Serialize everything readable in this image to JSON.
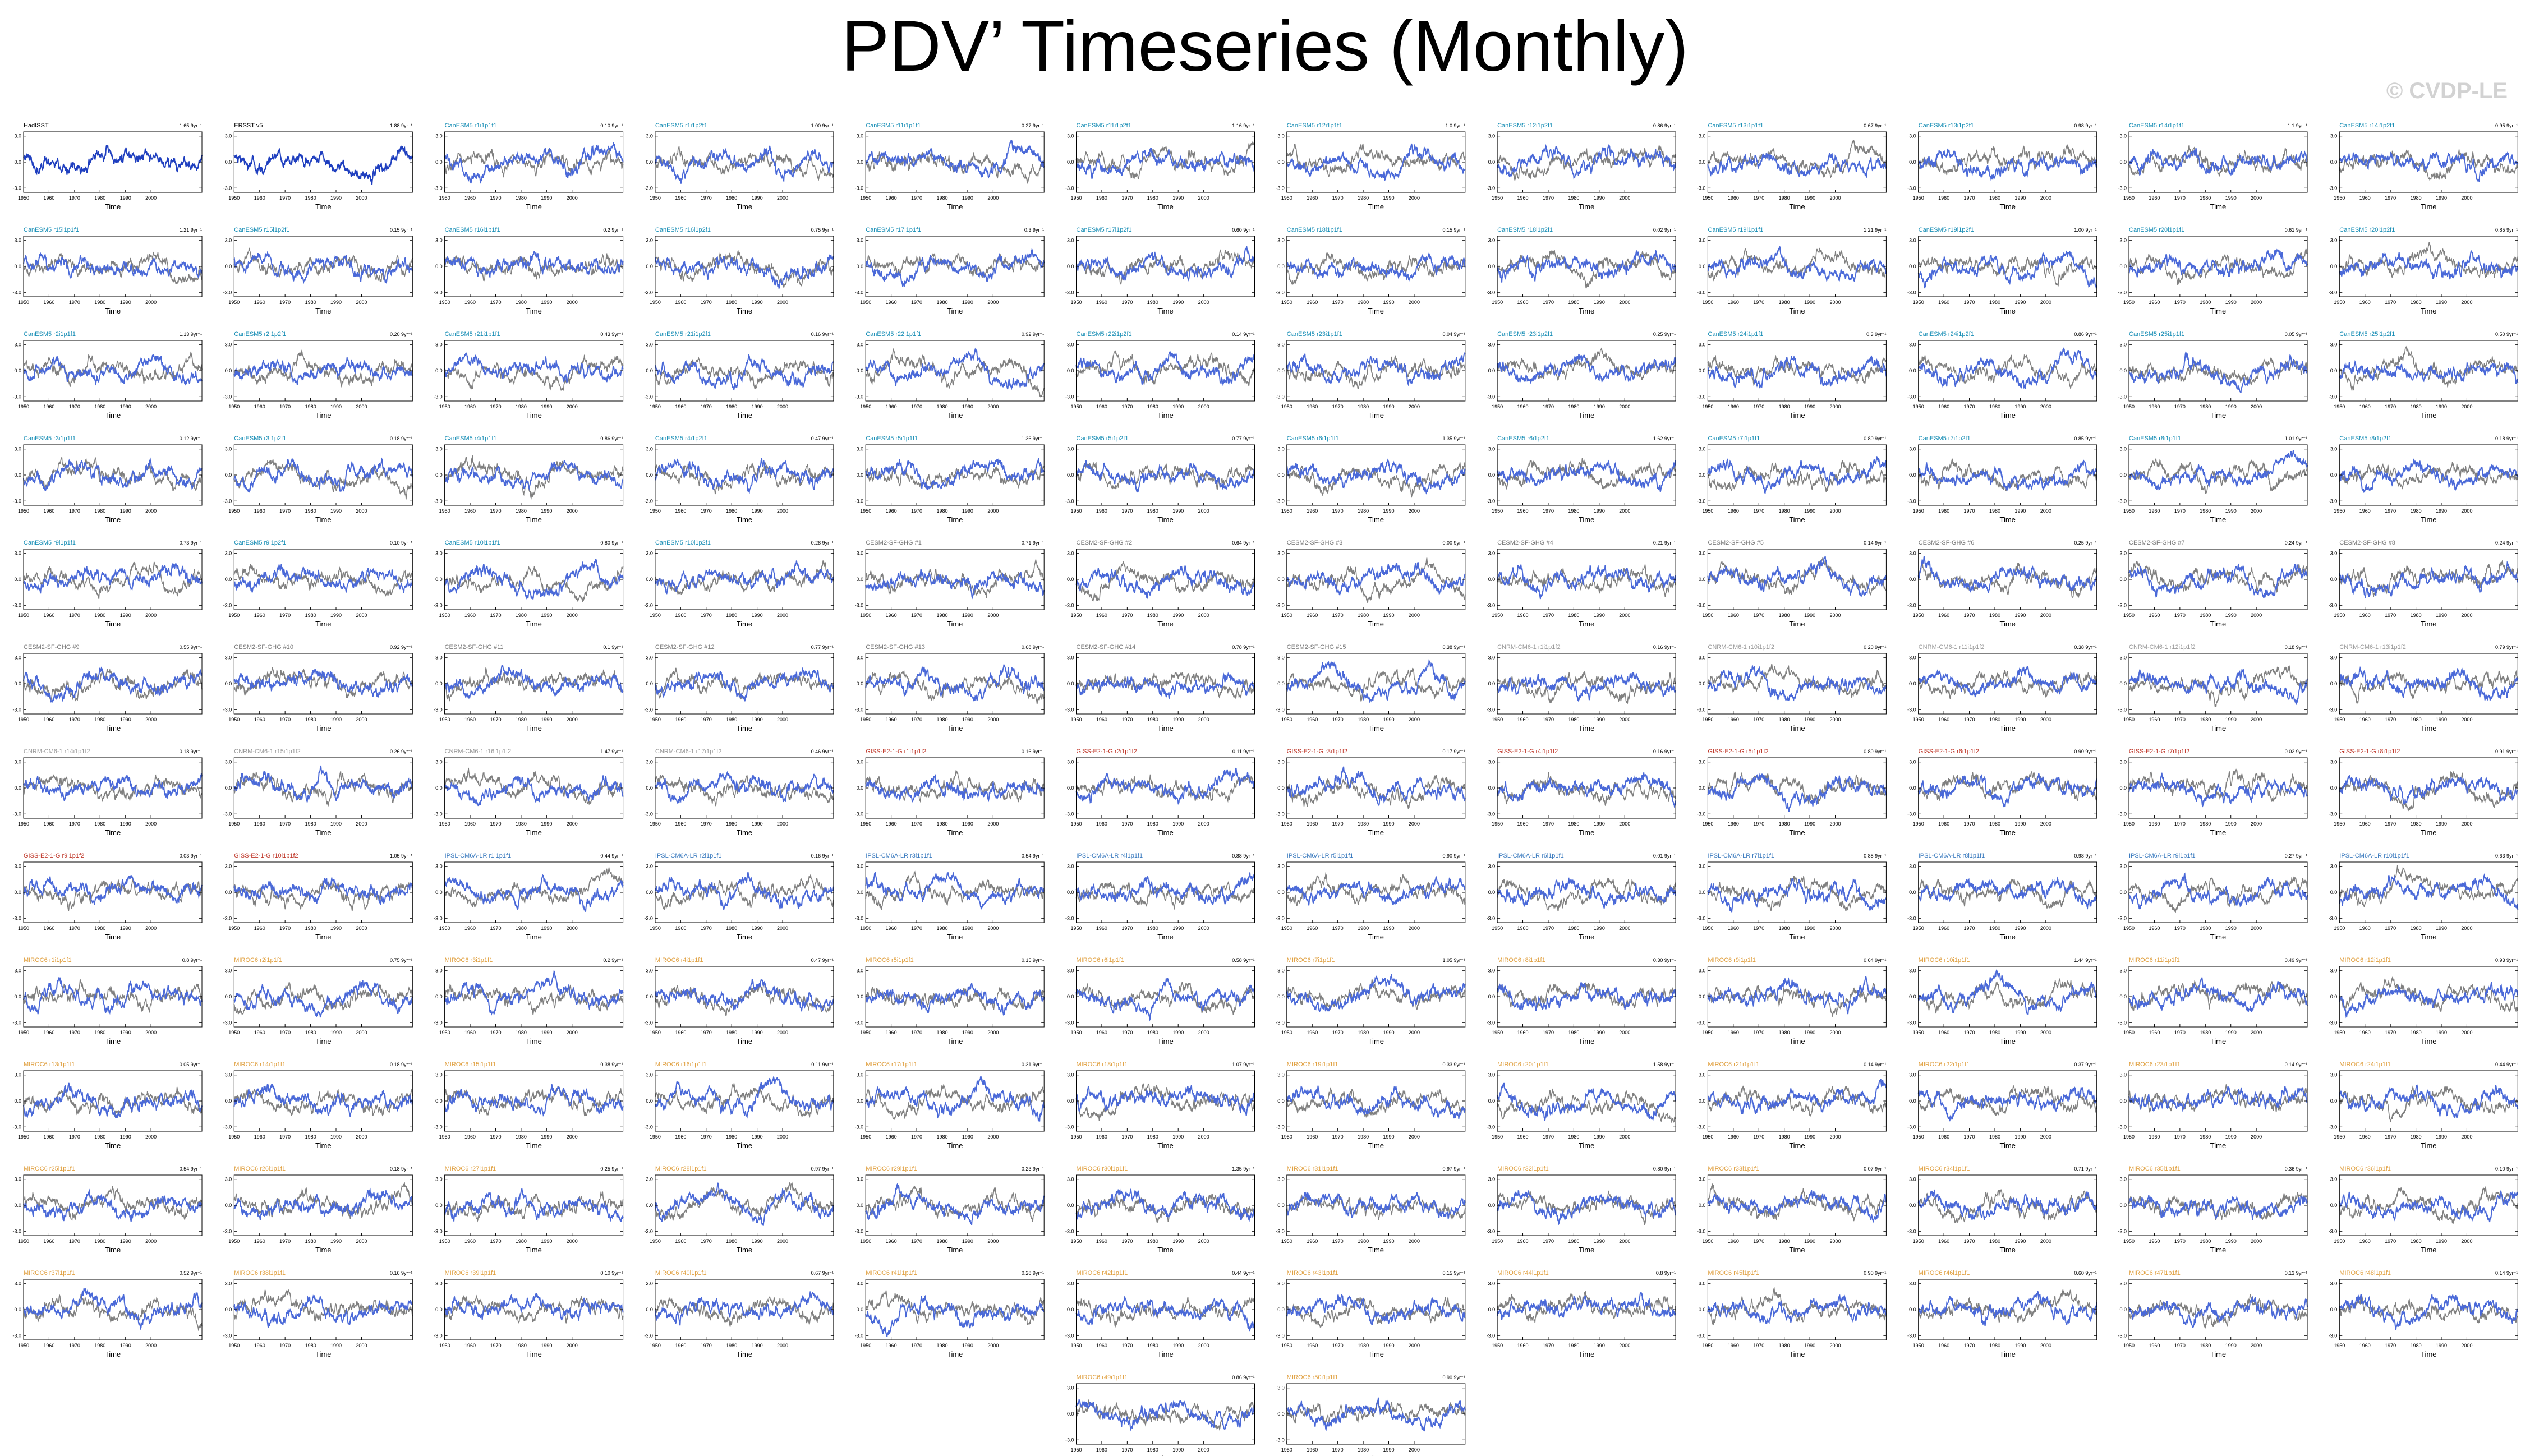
{
  "page": {
    "title": "PDV’ Timeseries (Monthly)",
    "watermark": "© CVDP-LE"
  },
  "colors": {
    "observations_line": "#1f3fbf",
    "model_line": "#4a69d8",
    "reference_line": "#808080",
    "cesm1_title": "#1a8fb6",
    "cesm2_title": "#7a7a7a",
    "cnrm_title": "#9a9a9a",
    "giss_title": "#c0392b",
    "ipsl_title": "#3b7bbf",
    "miroc_title": "#e0a040",
    "obs_title": "#000000"
  },
  "chart_data": {
    "type": "line",
    "panel_layout": "small multiples, 12 columns",
    "shared_axes": {
      "xlabel": "Time",
      "xlim": [
        1950,
        2020
      ],
      "xticks": [
        "1950",
        "1960",
        "1970",
        "1980",
        "1990",
        "2000"
      ],
      "ylim": [
        -3.5,
        3.5
      ],
      "yticks": [
        "3.0",
        "0.0",
        "-3.0"
      ],
      "grid": false
    },
    "panels": [
      {
        "title": "HadISST",
        "stat": "1.65 9yr⁻¹",
        "family": "obs",
        "seed": 1
      },
      {
        "title": "ERSST v5",
        "stat": "1.88 9yr⁻¹",
        "family": "obs",
        "seed": 2
      },
      {
        "title": "CanESM5 r1i1p1f1",
        "stat": "0.10 9yr⁻¹",
        "family": "cesm1",
        "seed": 3
      },
      {
        "title": "CanESM5 r1i1p2f1",
        "stat": "1.00 9yr⁻¹",
        "family": "cesm1",
        "seed": 4
      },
      {
        "title": "CanESM5 r11i1p1f1",
        "stat": "0.27 9yr⁻¹",
        "family": "cesm1",
        "seed": 5
      },
      {
        "title": "CanESM5 r11i1p2f1",
        "stat": "1.16 9yr⁻¹",
        "family": "cesm1",
        "seed": 6
      },
      {
        "title": "CanESM5 r12i1p1f1",
        "stat": "1.0 9yr⁻¹",
        "family": "cesm1",
        "seed": 7
      },
      {
        "title": "CanESM5 r12i1p2f1",
        "stat": "0.86 9yr⁻¹",
        "family": "cesm1",
        "seed": 8
      },
      {
        "title": "CanESM5 r13i1p1f1",
        "stat": "0.67 9yr⁻¹",
        "family": "cesm1",
        "seed": 9
      },
      {
        "title": "CanESM5 r13i1p2f1",
        "stat": "0.98 9yr⁻¹",
        "family": "cesm1",
        "seed": 10
      },
      {
        "title": "CanESM5 r14i1p1f1",
        "stat": "1.1 9yr⁻¹",
        "family": "cesm1",
        "seed": 11
      },
      {
        "title": "CanESM5 r14i1p2f1",
        "stat": "0.95 9yr⁻¹",
        "family": "cesm1",
        "seed": 12
      },
      {
        "title": "CanESM5 r15i1p1f1",
        "stat": "1.21 9yr⁻¹",
        "family": "cesm1",
        "seed": 13
      },
      {
        "title": "CanESM5 r15i1p2f1",
        "stat": "0.15 9yr⁻¹",
        "family": "cesm1",
        "seed": 14
      },
      {
        "title": "CanESM5 r16i1p1f1",
        "stat": "0.2 9yr⁻¹",
        "family": "cesm1",
        "seed": 15
      },
      {
        "title": "CanESM5 r16i1p2f1",
        "stat": "0.75 9yr⁻¹",
        "family": "cesm1",
        "seed": 16
      },
      {
        "title": "CanESM5 r17i1p1f1",
        "stat": "0.3 9yr⁻¹",
        "family": "cesm1",
        "seed": 17
      },
      {
        "title": "CanESM5 r17i1p2f1",
        "stat": "0.60 9yr⁻¹",
        "family": "cesm1",
        "seed": 18
      },
      {
        "title": "CanESM5 r18i1p1f1",
        "stat": "0.15 9yr⁻¹",
        "family": "cesm1",
        "seed": 19
      },
      {
        "title": "CanESM5 r18i1p2f1",
        "stat": "0.02 9yr⁻¹",
        "family": "cesm1",
        "seed": 20
      },
      {
        "title": "CanESM5 r19i1p1f1",
        "stat": "1.21 9yr⁻¹",
        "family": "cesm1",
        "seed": 21
      },
      {
        "title": "CanESM5 r19i1p2f1",
        "stat": "1.00 9yr⁻¹",
        "family": "cesm1",
        "seed": 22
      },
      {
        "title": "CanESM5 r20i1p1f1",
        "stat": "0.61 9yr⁻¹",
        "family": "cesm1",
        "seed": 23
      },
      {
        "title": "CanESM5 r20i1p2f1",
        "stat": "0.85 9yr⁻¹",
        "family": "cesm1",
        "seed": 24
      },
      {
        "title": "CanESM5 r2i1p1f1",
        "stat": "1.13 9yr⁻¹",
        "family": "cesm1",
        "seed": 25
      },
      {
        "title": "CanESM5 r2i1p2f1",
        "stat": "0.20 9yr⁻¹",
        "family": "cesm1",
        "seed": 26
      },
      {
        "title": "CanESM5 r21i1p1f1",
        "stat": "0.43 9yr⁻¹",
        "family": "cesm1",
        "seed": 27
      },
      {
        "title": "CanESM5 r21i1p2f1",
        "stat": "0.16 9yr⁻¹",
        "family": "cesm1",
        "seed": 28
      },
      {
        "title": "CanESM5 r22i1p1f1",
        "stat": "0.92 9yr⁻¹",
        "family": "cesm1",
        "seed": 29
      },
      {
        "title": "CanESM5 r22i1p2f1",
        "stat": "0.14 9yr⁻¹",
        "family": "cesm1",
        "seed": 30
      },
      {
        "title": "CanESM5 r23i1p1f1",
        "stat": "0.04 9yr⁻¹",
        "family": "cesm1",
        "seed": 31
      },
      {
        "title": "CanESM5 r23i1p2f1",
        "stat": "0.25 9yr⁻¹",
        "family": "cesm1",
        "seed": 32
      },
      {
        "title": "CanESM5 r24i1p1f1",
        "stat": "0.3 9yr⁻¹",
        "family": "cesm1",
        "seed": 33
      },
      {
        "title": "CanESM5 r24i1p2f1",
        "stat": "0.86 9yr⁻¹",
        "family": "cesm1",
        "seed": 34
      },
      {
        "title": "CanESM5 r25i1p1f1",
        "stat": "0.05 9yr⁻¹",
        "family": "cesm1",
        "seed": 35
      },
      {
        "title": "CanESM5 r25i1p2f1",
        "stat": "0.50 9yr⁻¹",
        "family": "cesm1",
        "seed": 36
      },
      {
        "title": "CanESM5 r3i1p1f1",
        "stat": "0.12 9yr⁻¹",
        "family": "cesm1",
        "seed": 37
      },
      {
        "title": "CanESM5 r3i1p2f1",
        "stat": "0.18 9yr⁻¹",
        "family": "cesm1",
        "seed": 38
      },
      {
        "title": "CanESM5 r4i1p1f1",
        "stat": "0.86 9yr⁻¹",
        "family": "cesm1",
        "seed": 39
      },
      {
        "title": "CanESM5 r4i1p2f1",
        "stat": "0.47 9yr⁻¹",
        "family": "cesm1",
        "seed": 40
      },
      {
        "title": "CanESM5 r5i1p1f1",
        "stat": "1.36 9yr⁻¹",
        "family": "cesm1",
        "seed": 41
      },
      {
        "title": "CanESM5 r5i1p2f1",
        "stat": "0.77 9yr⁻¹",
        "family": "cesm1",
        "seed": 42
      },
      {
        "title": "CanESM5 r6i1p1f1",
        "stat": "1.35 9yr⁻¹",
        "family": "cesm1",
        "seed": 43
      },
      {
        "title": "CanESM5 r6i1p2f1",
        "stat": "1.62 9yr⁻¹",
        "family": "cesm1",
        "seed": 44
      },
      {
        "title": "CanESM5 r7i1p1f1",
        "stat": "0.80 9yr⁻¹",
        "family": "cesm1",
        "seed": 45
      },
      {
        "title": "CanESM5 r7i1p2f1",
        "stat": "0.85 9yr⁻¹",
        "family": "cesm1",
        "seed": 46
      },
      {
        "title": "CanESM5 r8i1p1f1",
        "stat": "1.01 9yr⁻¹",
        "family": "cesm1",
        "seed": 47
      },
      {
        "title": "CanESM5 r8i1p2f1",
        "stat": "0.18 9yr⁻¹",
        "family": "cesm1",
        "seed": 48
      },
      {
        "title": "CanESM5 r9i1p1f1",
        "stat": "0.73 9yr⁻¹",
        "family": "cesm1",
        "seed": 49
      },
      {
        "title": "CanESM5 r9i1p2f1",
        "stat": "0.10 9yr⁻¹",
        "family": "cesm1",
        "seed": 50
      },
      {
        "title": "CanESM5 r10i1p1f1",
        "stat": "0.80 9yr⁻¹",
        "family": "cesm1",
        "seed": 51
      },
      {
        "title": "CanESM5 r10i1p2f1",
        "stat": "0.28 9yr⁻¹",
        "family": "cesm1",
        "seed": 52
      },
      {
        "title": "CESM2-SF-GHG #1",
        "stat": "0.71 9yr⁻¹",
        "family": "cesm2",
        "seed": 53
      },
      {
        "title": "CESM2-SF-GHG #2",
        "stat": "0.64 9yr⁻¹",
        "family": "cesm2",
        "seed": 54
      },
      {
        "title": "CESM2-SF-GHG #3",
        "stat": "0.00 9yr⁻¹",
        "family": "cesm2",
        "seed": 55
      },
      {
        "title": "CESM2-SF-GHG #4",
        "stat": "0.21 9yr⁻¹",
        "family": "cesm2",
        "seed": 56
      },
      {
        "title": "CESM2-SF-GHG #5",
        "stat": "0.14 9yr⁻¹",
        "family": "cesm2",
        "seed": 57
      },
      {
        "title": "CESM2-SF-GHG #6",
        "stat": "0.25 9yr⁻¹",
        "family": "cesm2",
        "seed": 58
      },
      {
        "title": "CESM2-SF-GHG #7",
        "stat": "0.24 9yr⁻¹",
        "family": "cesm2",
        "seed": 59
      },
      {
        "title": "CESM2-SF-GHG #8",
        "stat": "0.24 9yr⁻¹",
        "family": "cesm2",
        "seed": 60
      },
      {
        "title": "CESM2-SF-GHG #9",
        "stat": "0.55 9yr⁻¹",
        "family": "cesm2",
        "seed": 61
      },
      {
        "title": "CESM2-SF-GHG #10",
        "stat": "0.92 9yr⁻¹",
        "family": "cesm2",
        "seed": 62
      },
      {
        "title": "CESM2-SF-GHG #11",
        "stat": "0.1 9yr⁻¹",
        "family": "cesm2",
        "seed": 63
      },
      {
        "title": "CESM2-SF-GHG #12",
        "stat": "0.77 9yr⁻¹",
        "family": "cesm2",
        "seed": 64
      },
      {
        "title": "CESM2-SF-GHG #13",
        "stat": "0.68 9yr⁻¹",
        "family": "cesm2",
        "seed": 65
      },
      {
        "title": "CESM2-SF-GHG #14",
        "stat": "0.78 9yr⁻¹",
        "family": "cesm2",
        "seed": 66
      },
      {
        "title": "CESM2-SF-GHG #15",
        "stat": "0.38 9yr⁻¹",
        "family": "cesm2",
        "seed": 67
      },
      {
        "title": "CNRM-CM6-1 r1i1p1f2",
        "stat": "0.16 9yr⁻¹",
        "family": "cnrm",
        "seed": 68
      },
      {
        "title": "CNRM-CM6-1 r10i1p1f2",
        "stat": "0.20 9yr⁻¹",
        "family": "cnrm",
        "seed": 69
      },
      {
        "title": "CNRM-CM6-1 r11i1p1f2",
        "stat": "0.38 9yr⁻¹",
        "family": "cnrm",
        "seed": 70
      },
      {
        "title": "CNRM-CM6-1 r12i1p1f2",
        "stat": "0.18 9yr⁻¹",
        "family": "cnrm",
        "seed": 71
      },
      {
        "title": "CNRM-CM6-1 r13i1p1f2",
        "stat": "0.79 9yr⁻¹",
        "family": "cnrm",
        "seed": 72
      },
      {
        "title": "CNRM-CM6-1 r14i1p1f2",
        "stat": "0.18 9yr⁻¹",
        "family": "cnrm",
        "seed": 73
      },
      {
        "title": "CNRM-CM6-1 r15i1p1f2",
        "stat": "0.26 9yr⁻¹",
        "family": "cnrm",
        "seed": 74
      },
      {
        "title": "CNRM-CM6-1 r16i1p1f2",
        "stat": "1.47 9yr⁻¹",
        "family": "cnrm",
        "seed": 75
      },
      {
        "title": "CNRM-CM6-1 r17i1p1f2",
        "stat": "0.46 9yr⁻¹",
        "family": "cnrm",
        "seed": 76
      },
      {
        "title": "GISS-E2-1-G r1i1p1f2",
        "stat": "0.16 9yr⁻¹",
        "family": "giss",
        "seed": 77
      },
      {
        "title": "GISS-E2-1-G r2i1p1f2",
        "stat": "0.11 9yr⁻¹",
        "family": "giss",
        "seed": 78
      },
      {
        "title": "GISS-E2-1-G r3i1p1f2",
        "stat": "0.17 9yr⁻¹",
        "family": "giss",
        "seed": 79
      },
      {
        "title": "GISS-E2-1-G r4i1p1f2",
        "stat": "0.16 9yr⁻¹",
        "family": "giss",
        "seed": 80
      },
      {
        "title": "GISS-E2-1-G r5i1p1f2",
        "stat": "0.80 9yr⁻¹",
        "family": "giss",
        "seed": 81
      },
      {
        "title": "GISS-E2-1-G r6i1p1f2",
        "stat": "0.90 9yr⁻¹",
        "family": "giss",
        "seed": 82
      },
      {
        "title": "GISS-E2-1-G r7i1p1f2",
        "stat": "0.02 9yr⁻¹",
        "family": "giss",
        "seed": 83
      },
      {
        "title": "GISS-E2-1-G r8i1p1f2",
        "stat": "0.91 9yr⁻¹",
        "family": "giss",
        "seed": 84
      },
      {
        "title": "GISS-E2-1-G r9i1p1f2",
        "stat": "0.03 9yr⁻¹",
        "family": "giss",
        "seed": 85
      },
      {
        "title": "GISS-E2-1-G r10i1p1f2",
        "stat": "1.05 9yr⁻¹",
        "family": "giss",
        "seed": 86
      },
      {
        "title": "IPSL-CM6A-LR r1i1p1f1",
        "stat": "0.44 9yr⁻¹",
        "family": "ipsl",
        "seed": 87
      },
      {
        "title": "IPSL-CM6A-LR r2i1p1f1",
        "stat": "0.16 9yr⁻¹",
        "family": "ipsl",
        "seed": 88
      },
      {
        "title": "IPSL-CM6A-LR r3i1p1f1",
        "stat": "0.54 9yr⁻¹",
        "family": "ipsl",
        "seed": 89
      },
      {
        "title": "IPSL-CM6A-LR r4i1p1f1",
        "stat": "0.88 9yr⁻¹",
        "family": "ipsl",
        "seed": 90
      },
      {
        "title": "IPSL-CM6A-LR r5i1p1f1",
        "stat": "0.90 9yr⁻¹",
        "family": "ipsl",
        "seed": 91
      },
      {
        "title": "IPSL-CM6A-LR r6i1p1f1",
        "stat": "0.01 9yr⁻¹",
        "family": "ipsl",
        "seed": 92
      },
      {
        "title": "IPSL-CM6A-LR r7i1p1f1",
        "stat": "0.88 9yr⁻¹",
        "family": "ipsl",
        "seed": 93
      },
      {
        "title": "IPSL-CM6A-LR r8i1p1f1",
        "stat": "0.98 9yr⁻¹",
        "family": "ipsl",
        "seed": 94
      },
      {
        "title": "IPSL-CM6A-LR r9i1p1f1",
        "stat": "0.27 9yr⁻¹",
        "family": "ipsl",
        "seed": 95
      },
      {
        "title": "IPSL-CM6A-LR r10i1p1f1",
        "stat": "0.63 9yr⁻¹",
        "family": "ipsl",
        "seed": 96
      },
      {
        "title": "MIROC6 r1i1p1f1",
        "stat": "0.8 9yr⁻¹",
        "family": "miroc",
        "seed": 97
      },
      {
        "title": "MIROC6 r2i1p1f1",
        "stat": "0.75 9yr⁻¹",
        "family": "miroc",
        "seed": 98
      },
      {
        "title": "MIROC6 r3i1p1f1",
        "stat": "0.2 9yr⁻¹",
        "family": "miroc",
        "seed": 99
      },
      {
        "title": "MIROC6 r4i1p1f1",
        "stat": "0.47 9yr⁻¹",
        "family": "miroc",
        "seed": 100
      },
      {
        "title": "MIROC6 r5i1p1f1",
        "stat": "0.15 9yr⁻¹",
        "family": "miroc",
        "seed": 101
      },
      {
        "title": "MIROC6 r6i1p1f1",
        "stat": "0.58 9yr⁻¹",
        "family": "miroc",
        "seed": 102
      },
      {
        "title": "MIROC6 r7i1p1f1",
        "stat": "1.05 9yr⁻¹",
        "family": "miroc",
        "seed": 103
      },
      {
        "title": "MIROC6 r8i1p1f1",
        "stat": "0.30 9yr⁻¹",
        "family": "miroc",
        "seed": 104
      },
      {
        "title": "MIROC6 r9i1p1f1",
        "stat": "0.64 9yr⁻¹",
        "family": "miroc",
        "seed": 105
      },
      {
        "title": "MIROC6 r10i1p1f1",
        "stat": "1.44 9yr⁻¹",
        "family": "miroc",
        "seed": 106
      },
      {
        "title": "MIROC6 r11i1p1f1",
        "stat": "0.49 9yr⁻¹",
        "family": "miroc",
        "seed": 107
      },
      {
        "title": "MIROC6 r12i1p1f1",
        "stat": "0.93 9yr⁻¹",
        "family": "miroc",
        "seed": 108
      },
      {
        "title": "MIROC6 r13i1p1f1",
        "stat": "0.05 9yr⁻¹",
        "family": "miroc",
        "seed": 109
      },
      {
        "title": "MIROC6 r14i1p1f1",
        "stat": "0.18 9yr⁻¹",
        "family": "miroc",
        "seed": 110
      },
      {
        "title": "MIROC6 r15i1p1f1",
        "stat": "0.38 9yr⁻¹",
        "family": "miroc",
        "seed": 111
      },
      {
        "title": "MIROC6 r16i1p1f1",
        "stat": "0.11 9yr⁻¹",
        "family": "miroc",
        "seed": 112
      },
      {
        "title": "MIROC6 r17i1p1f1",
        "stat": "0.31 9yr⁻¹",
        "family": "miroc",
        "seed": 113
      },
      {
        "title": "MIROC6 r18i1p1f1",
        "stat": "1.07 9yr⁻¹",
        "family": "miroc",
        "seed": 114
      },
      {
        "title": "MIROC6 r19i1p1f1",
        "stat": "0.33 9yr⁻¹",
        "family": "miroc",
        "seed": 115
      },
      {
        "title": "MIROC6 r20i1p1f1",
        "stat": "1.58 9yr⁻¹",
        "family": "miroc",
        "seed": 116
      },
      {
        "title": "MIROC6 r21i1p1f1",
        "stat": "0.14 9yr⁻¹",
        "family": "miroc",
        "seed": 117
      },
      {
        "title": "MIROC6 r22i1p1f1",
        "stat": "0.37 9yr⁻¹",
        "family": "miroc",
        "seed": 118
      },
      {
        "title": "MIROC6 r23i1p1f1",
        "stat": "0.14 9yr⁻¹",
        "family": "miroc",
        "seed": 119
      },
      {
        "title": "MIROC6 r24i1p1f1",
        "stat": "0.44 9yr⁻¹",
        "family": "miroc",
        "seed": 120
      },
      {
        "title": "MIROC6 r25i1p1f1",
        "stat": "0.54 9yr⁻¹",
        "family": "miroc",
        "seed": 121
      },
      {
        "title": "MIROC6 r26i1p1f1",
        "stat": "0.18 9yr⁻¹",
        "family": "miroc",
        "seed": 122
      },
      {
        "title": "MIROC6 r27i1p1f1",
        "stat": "0.25 9yr⁻¹",
        "family": "miroc",
        "seed": 123
      },
      {
        "title": "MIROC6 r28i1p1f1",
        "stat": "0.97 9yr⁻¹",
        "family": "miroc",
        "seed": 124
      },
      {
        "title": "MIROC6 r29i1p1f1",
        "stat": "0.23 9yr⁻¹",
        "family": "miroc",
        "seed": 125
      },
      {
        "title": "MIROC6 r30i1p1f1",
        "stat": "1.35 9yr⁻¹",
        "family": "miroc",
        "seed": 126
      },
      {
        "title": "MIROC6 r31i1p1f1",
        "stat": "0.97 9yr⁻¹",
        "family": "miroc",
        "seed": 127
      },
      {
        "title": "MIROC6 r32i1p1f1",
        "stat": "0.80 9yr⁻¹",
        "family": "miroc",
        "seed": 128
      },
      {
        "title": "MIROC6 r33i1p1f1",
        "stat": "0.07 9yr⁻¹",
        "family": "miroc",
        "seed": 129
      },
      {
        "title": "MIROC6 r34i1p1f1",
        "stat": "0.71 9yr⁻¹",
        "family": "miroc",
        "seed": 130
      },
      {
        "title": "MIROC6 r35i1p1f1",
        "stat": "0.36 9yr⁻¹",
        "family": "miroc",
        "seed": 131
      },
      {
        "title": "MIROC6 r36i1p1f1",
        "stat": "0.10 9yr⁻¹",
        "family": "miroc",
        "seed": 132
      },
      {
        "title": "MIROC6 r37i1p1f1",
        "stat": "0.52 9yr⁻¹",
        "family": "miroc",
        "seed": 133
      },
      {
        "title": "MIROC6 r38i1p1f1",
        "stat": "0.16 9yr⁻¹",
        "family": "miroc",
        "seed": 134
      },
      {
        "title": "MIROC6 r39i1p1f1",
        "stat": "0.10 9yr⁻¹",
        "family": "miroc",
        "seed": 135
      },
      {
        "title": "MIROC6 r40i1p1f1",
        "stat": "0.67 9yr⁻¹",
        "family": "miroc",
        "seed": 136
      },
      {
        "title": "MIROC6 r41i1p1f1",
        "stat": "0.28 9yr⁻¹",
        "family": "miroc",
        "seed": 137
      },
      {
        "title": "MIROC6 r42i1p1f1",
        "stat": "0.44 9yr⁻¹",
        "family": "miroc",
        "seed": 138
      },
      {
        "title": "MIROC6 r43i1p1f1",
        "stat": "0.15 9yr⁻¹",
        "family": "miroc",
        "seed": 139
      },
      {
        "title": "MIROC6 r44i1p1f1",
        "stat": "0.8 9yr⁻¹",
        "family": "miroc",
        "seed": 140
      },
      {
        "title": "MIROC6 r45i1p1f1",
        "stat": "0.90 9yr⁻¹",
        "family": "miroc",
        "seed": 141
      },
      {
        "title": "MIROC6 r46i1p1f1",
        "stat": "0.60 9yr⁻¹",
        "family": "miroc",
        "seed": 142
      },
      {
        "title": "MIROC6 r47i1p1f1",
        "stat": "0.13 9yr⁻¹",
        "family": "miroc",
        "seed": 143
      },
      {
        "title": "MIROC6 r48i1p1f1",
        "stat": "0.14 9yr⁻¹",
        "family": "miroc",
        "seed": 144
      },
      {
        "title": "MIROC6 r49i1p1f1",
        "stat": "0.86 9yr⁻¹",
        "family": "miroc",
        "seed": 145
      },
      {
        "title": "MIROC6 r50i1p1f1",
        "stat": "0.90 9yr⁻¹",
        "family": "miroc",
        "seed": 146
      }
    ]
  }
}
